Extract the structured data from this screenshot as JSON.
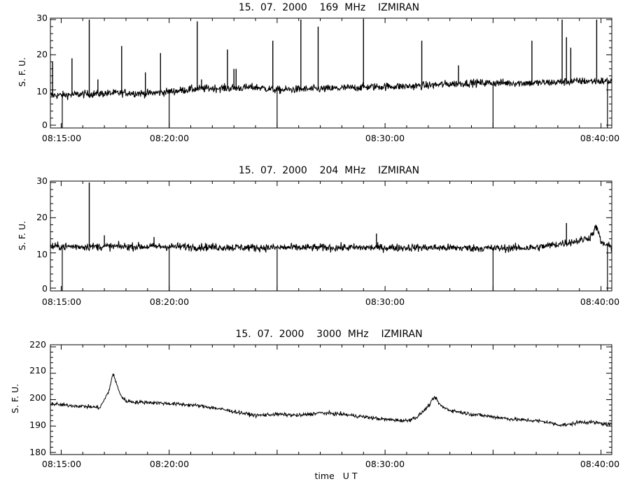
{
  "xlabel": "time   U T",
  "x_tick_labels": [
    "08:15:00",
    "08:20:00",
    "08:30:00",
    "08:40:00"
  ],
  "chart_data": [
    {
      "type": "line",
      "title": "15.  07.  2000    169  MHz    IZMIRAN",
      "ylabel": "S. F. U.",
      "x_range": [
        "08:14:30",
        "08:40:30"
      ],
      "xlim_minutes": [
        14.5,
        40.5
      ],
      "ylim": [
        0,
        30
      ],
      "y_ticks": [
        0,
        10,
        20,
        30
      ],
      "x_ticks": [
        "08:15:00",
        "08:20:00",
        "08:30:00",
        "08:40:00"
      ],
      "series": [
        {
          "x_minutes": [
            14.5,
            15,
            16,
            17,
            18,
            19,
            20,
            21,
            22,
            23,
            24,
            25,
            26,
            27,
            28,
            29,
            30,
            31,
            32,
            33,
            34,
            35,
            36,
            37,
            38,
            39,
            40,
            40.5
          ],
          "values": [
            8.5,
            8.5,
            8.8,
            9.0,
            9.2,
            9.0,
            9.5,
            10.2,
            10.5,
            10.5,
            10.8,
            10.0,
            10.2,
            10.3,
            10.5,
            10.8,
            11.0,
            11.0,
            11.3,
            11.7,
            12.0,
            12.0,
            12.0,
            12.0,
            12.2,
            12.5,
            12.5,
            12.5
          ],
          "spikes": [
            {
              "x": 14.6,
              "y": 18
            },
            {
              "x": 15.5,
              "y": 19
            },
            {
              "x": 16.3,
              "y": 30
            },
            {
              "x": 16.7,
              "y": 13
            },
            {
              "x": 17.8,
              "y": 22.5
            },
            {
              "x": 18.9,
              "y": 15
            },
            {
              "x": 19.6,
              "y": 20.5
            },
            {
              "x": 21.3,
              "y": 29.5
            },
            {
              "x": 21.5,
              "y": 13
            },
            {
              "x": 22.7,
              "y": 21.5
            },
            {
              "x": 23.0,
              "y": 16
            },
            {
              "x": 23.1,
              "y": 16
            },
            {
              "x": 24.8,
              "y": 24
            },
            {
              "x": 26.1,
              "y": 30
            },
            {
              "x": 26.9,
              "y": 28
            },
            {
              "x": 29.0,
              "y": 30
            },
            {
              "x": 31.7,
              "y": 24
            },
            {
              "x": 33.4,
              "y": 17
            },
            {
              "x": 36.8,
              "y": 24
            },
            {
              "x": 38.2,
              "y": 30
            },
            {
              "x": 38.4,
              "y": 25
            },
            {
              "x": 38.6,
              "y": 22
            },
            {
              "x": 39.8,
              "y": 30
            }
          ],
          "dropouts": [
            {
              "x": 15.05
            },
            {
              "x": 20.0
            },
            {
              "x": 25.0
            },
            {
              "x": 35.0
            },
            {
              "x": 40.3
            }
          ]
        }
      ]
    },
    {
      "type": "line",
      "title": "15.  07.  2000    204  MHz    IZMIRAN",
      "ylabel": "S. F. U.",
      "x_range": [
        "08:14:30",
        "08:40:30"
      ],
      "xlim_minutes": [
        14.5,
        40.5
      ],
      "ylim": [
        0,
        30
      ],
      "y_ticks": [
        0,
        10,
        20,
        30
      ],
      "x_ticks": [
        "08:15:00",
        "08:20:00",
        "08:30:00",
        "08:40:00"
      ],
      "series": [
        {
          "x_minutes": [
            14.5,
            15,
            18,
            20,
            24,
            28,
            32,
            35,
            37,
            38,
            39,
            39.5,
            39.8,
            40,
            40.5
          ],
          "values": [
            11.8,
            11.8,
            11.8,
            11.8,
            11.5,
            11.5,
            11.5,
            11.3,
            11.5,
            12.5,
            13.5,
            14.5,
            17.5,
            13,
            11.5
          ],
          "spikes": [
            {
              "x": 16.3,
              "y": 30
            },
            {
              "x": 17.0,
              "y": 15
            },
            {
              "x": 19.3,
              "y": 14.5
            },
            {
              "x": 29.6,
              "y": 15.5
            },
            {
              "x": 38.4,
              "y": 18.5
            }
          ],
          "dropouts": [
            {
              "x": 15.05
            },
            {
              "x": 20.0
            },
            {
              "x": 25.0
            },
            {
              "x": 35.0
            },
            {
              "x": 40.3
            }
          ]
        }
      ]
    },
    {
      "type": "line",
      "title": "15.  07.  2000    3000  MHz    IZMIRAN",
      "ylabel": "S. F. U.",
      "x_range": [
        "08:14:30",
        "08:40:30"
      ],
      "xlim_minutes": [
        14.5,
        40.5
      ],
      "ylim": [
        180,
        220
      ],
      "y_ticks": [
        180,
        190,
        200,
        210,
        220
      ],
      "x_ticks": [
        "08:15:00",
        "08:20:00",
        "08:30:00",
        "08:40:00"
      ],
      "series": [
        {
          "x_minutes": [
            14.5,
            15,
            16,
            16.8,
            17.2,
            17.4,
            17.6,
            17.8,
            18.0,
            18.5,
            19,
            20,
            21,
            22,
            23,
            24,
            25,
            26,
            27,
            28,
            29,
            30,
            31,
            31.5,
            32.0,
            32.3,
            32.6,
            33,
            34,
            35,
            36,
            37,
            37.5,
            38,
            38.5,
            39,
            39.5,
            40,
            40.5
          ],
          "values": [
            198.5,
            198,
            197.5,
            197,
            203,
            210,
            205,
            201,
            199.5,
            199,
            199,
            198.5,
            198,
            197,
            195.5,
            194,
            194.5,
            194,
            195,
            194.5,
            193.5,
            192.5,
            192,
            193.5,
            197.5,
            201,
            197.5,
            196,
            194.5,
            193.5,
            192.5,
            192,
            191.5,
            190.5,
            190.5,
            191.5,
            191.5,
            191,
            190.5
          ]
        }
      ]
    }
  ]
}
